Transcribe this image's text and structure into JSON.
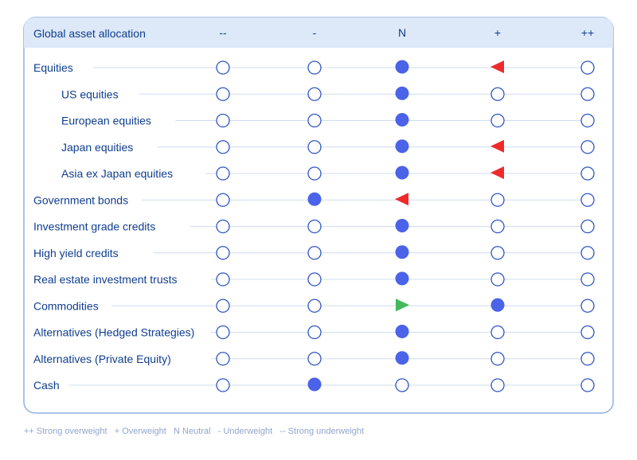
{
  "chart_data": {
    "type": "table",
    "title": "Global asset allocation",
    "columns": [
      "--",
      "-",
      "N",
      "+",
      "++"
    ],
    "rows": [
      {
        "label": "Equities",
        "indent": false,
        "position": "N",
        "change": "+",
        "arrow": "left"
      },
      {
        "label": "US equities",
        "indent": true,
        "position": "N",
        "change": null,
        "arrow": null
      },
      {
        "label": "European equities",
        "indent": true,
        "position": "N",
        "change": null,
        "arrow": null
      },
      {
        "label": "Japan equities",
        "indent": true,
        "position": "N",
        "change": "+",
        "arrow": "left"
      },
      {
        "label": "Asia ex Japan equities",
        "indent": true,
        "position": "N",
        "change": "+",
        "arrow": "left"
      },
      {
        "label": "Government bonds",
        "indent": false,
        "position": "-",
        "change": "N",
        "arrow": "left"
      },
      {
        "label": "Investment grade credits",
        "indent": false,
        "position": "N",
        "change": null,
        "arrow": null
      },
      {
        "label": "High yield credits",
        "indent": false,
        "position": "N",
        "change": null,
        "arrow": null
      },
      {
        "label": "Real estate investment trusts",
        "indent": false,
        "position": "N",
        "change": null,
        "arrow": null
      },
      {
        "label": "Commodities",
        "indent": false,
        "position": "+",
        "change": "N",
        "arrow": "right"
      },
      {
        "label": "Alternatives (Hedged Strategies)",
        "indent": false,
        "position": "N",
        "change": null,
        "arrow": null
      },
      {
        "label": "Alternatives (Private Equity)",
        "indent": false,
        "position": "N",
        "change": null,
        "arrow": null
      },
      {
        "label": "Cash",
        "indent": false,
        "position": "-",
        "change": null,
        "arrow": null
      }
    ],
    "legend": "++ Strong overweight   + Overweight   N Neutral   - Underweight   -- Strong underweight"
  },
  "colors": {
    "border": "#8fb0e6",
    "header_bg": "#dde8f8",
    "text": "#0f3e8f",
    "filled": "#4a63e8",
    "empty_stroke": "#2e57c4",
    "line": "#cfdcf2",
    "arrow_left": "#ee2b2b",
    "arrow_right": "#43b85c",
    "legend_text": "#8fa6cc"
  }
}
